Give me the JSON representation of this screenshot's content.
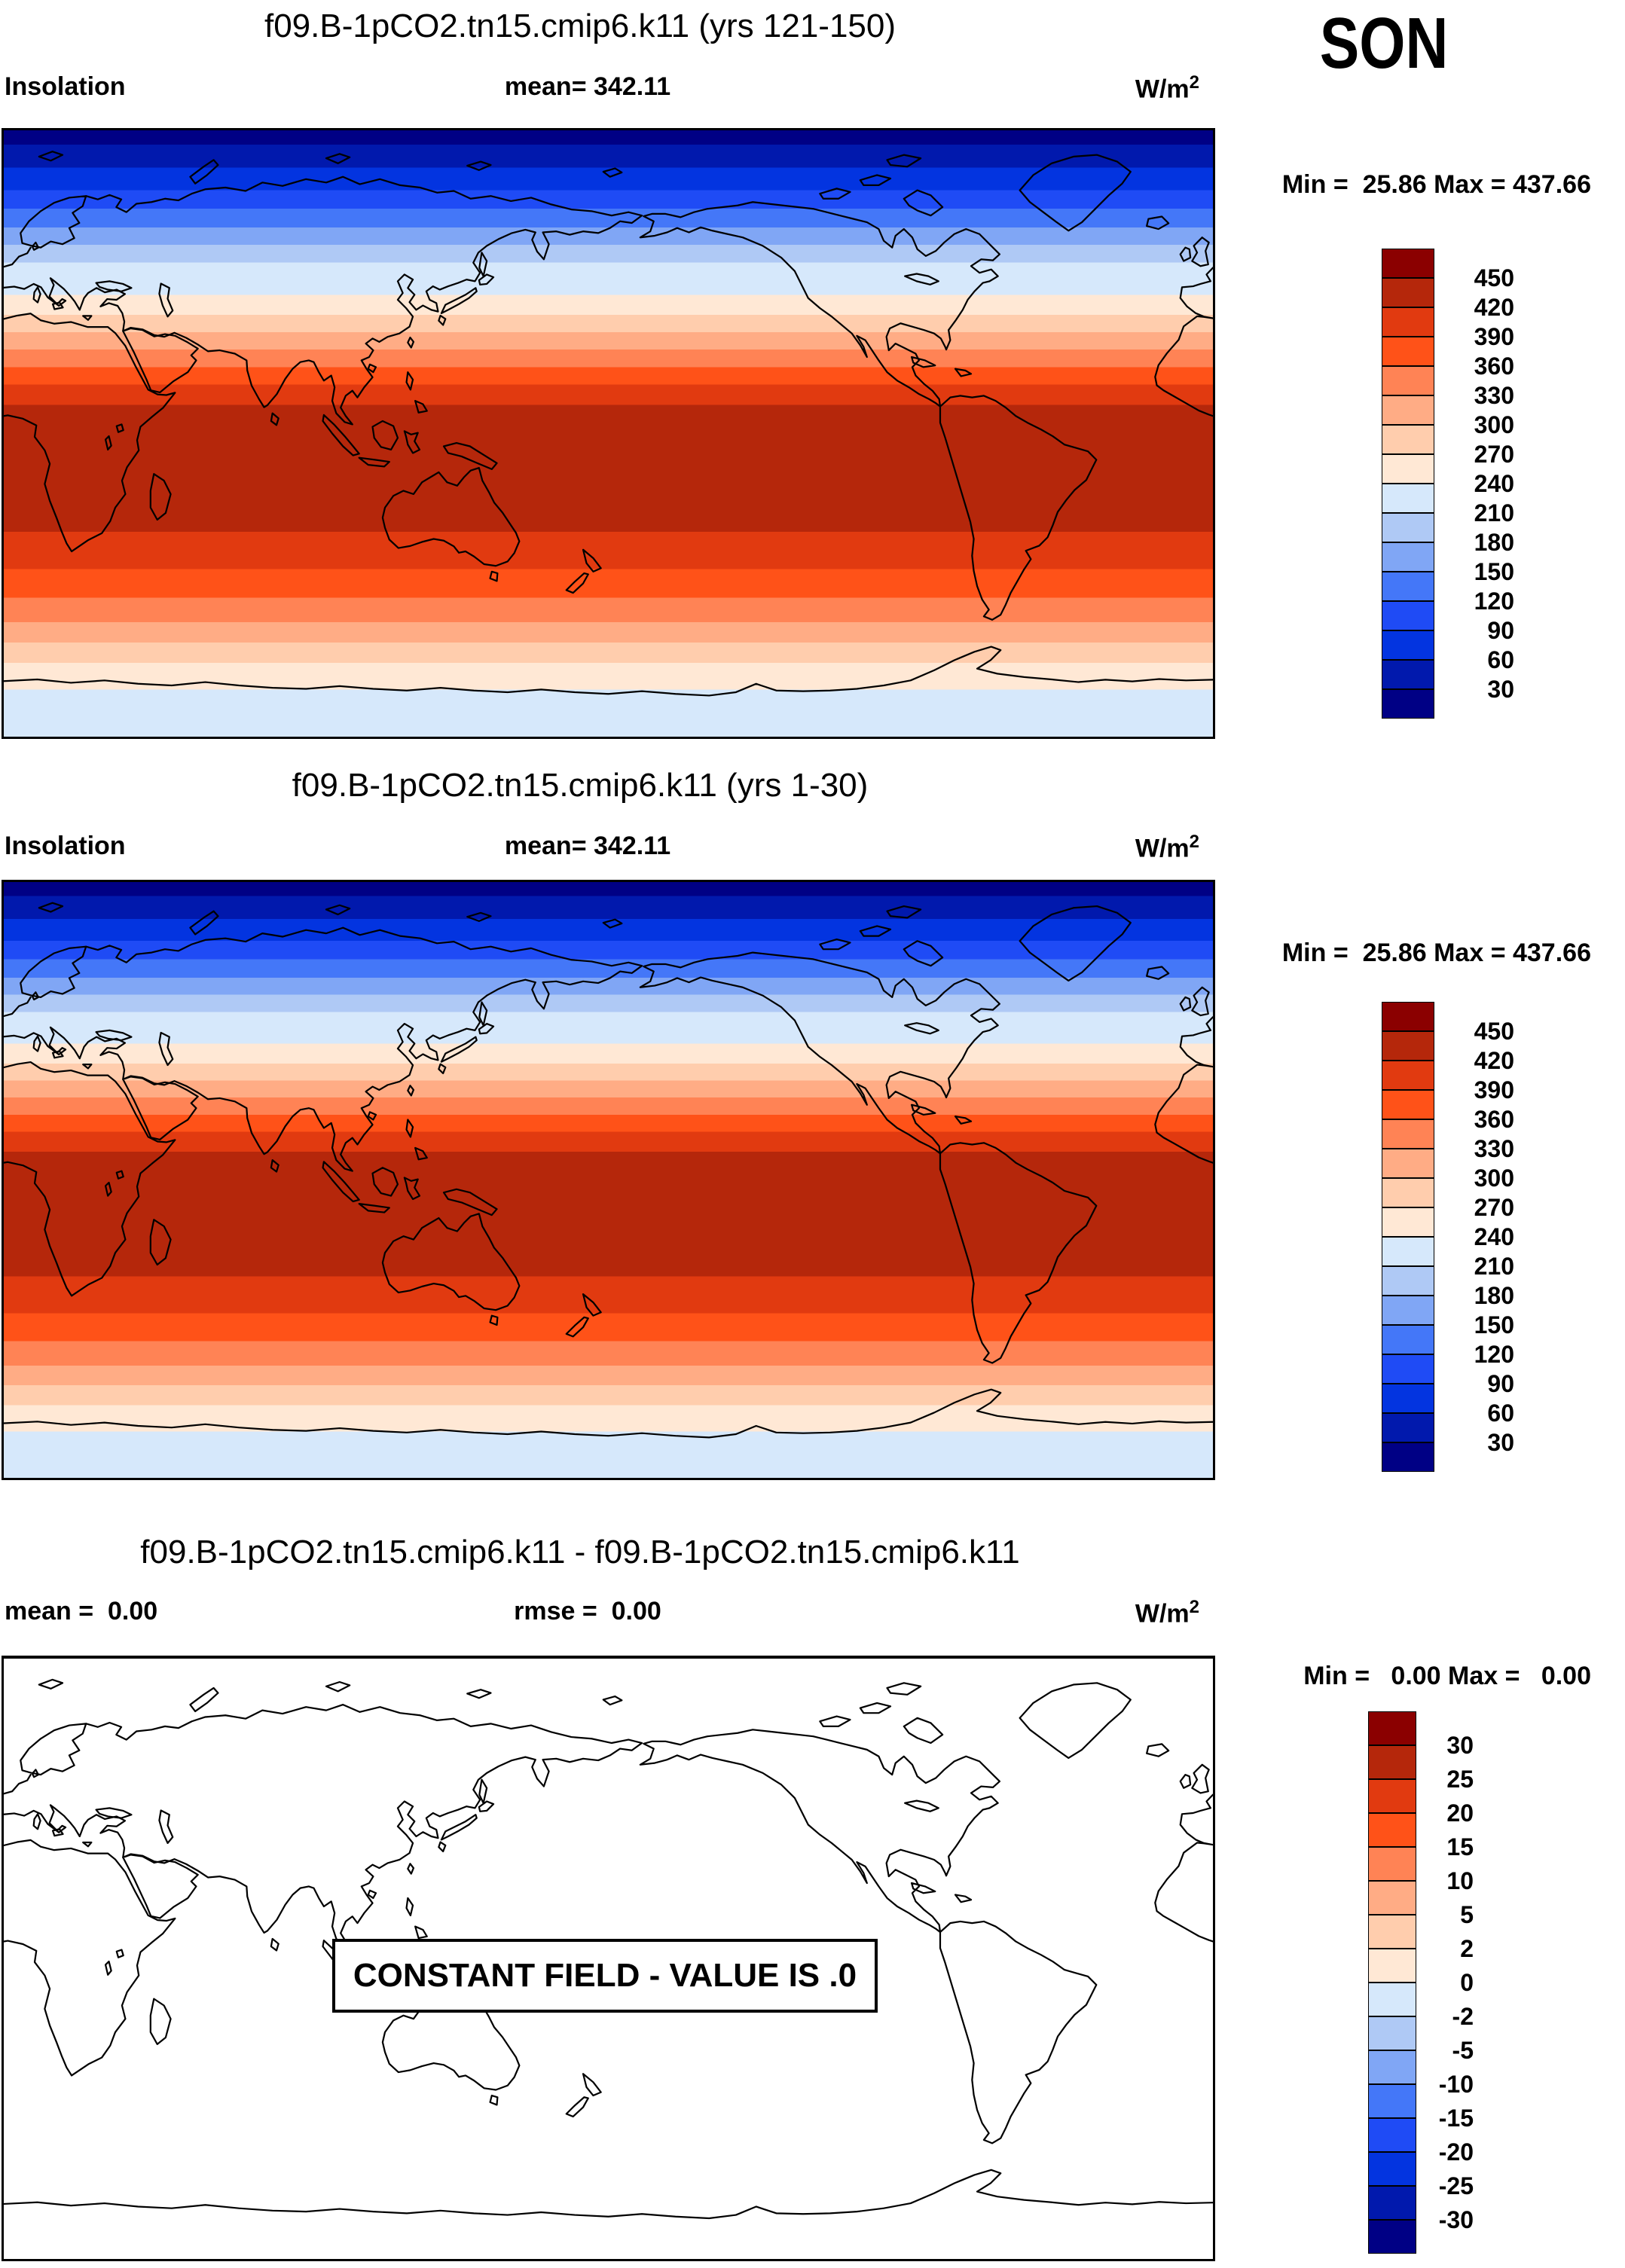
{
  "figure": {
    "season": "SON",
    "panels": [
      {
        "title": "f09.B-1pCO2.tn15.cmip6.k11 (yrs 121-150)",
        "left_label": "Insolation",
        "center_label": "mean= 342.11",
        "units_base": "W/m",
        "units_exp": "2",
        "minmax": "Min =  25.86 Max = 437.66",
        "field": "insolation"
      },
      {
        "title": "f09.B-1pCO2.tn15.cmip6.k11 (yrs 1-30)",
        "left_label": "Insolation",
        "center_label": "mean= 342.11",
        "units_base": "W/m",
        "units_exp": "2",
        "minmax": "Min =  25.86 Max = 437.66",
        "field": "insolation"
      },
      {
        "title": "f09.B-1pCO2.tn15.cmip6.k11 - f09.B-1pCO2.tn15.cmip6.k11",
        "left_label": "mean =  0.00",
        "center_label": "rmse =  0.00",
        "units_base": "W/m",
        "units_exp": "2",
        "minmax": "Min =   0.00 Max =   0.00",
        "field": "difference",
        "overlay_note": "CONSTANT FIELD - VALUE IS .0"
      }
    ]
  },
  "colorbar": {
    "colors_top_to_bottom": [
      "#8B0000",
      "#B5270B",
      "#E13A10",
      "#FF5218",
      "#FF8355",
      "#FFAC85",
      "#FFCDAD",
      "#FFE8D5",
      "#D6E8FB",
      "#AFC9F5",
      "#80A6F5",
      "#4477F8",
      "#1F4BF5",
      "#0334E0",
      "#0119AD",
      "#000085"
    ],
    "insolation_ticks": [
      "450",
      "420",
      "390",
      "360",
      "330",
      "300",
      "270",
      "240",
      "210",
      "180",
      "150",
      "120",
      "90",
      "60",
      "30"
    ],
    "difference_ticks": [
      "30",
      "25",
      "20",
      "15",
      "10",
      "5",
      "2",
      "0",
      "-2",
      "-5",
      "-10",
      "-15",
      "-20",
      "-25",
      "-30"
    ]
  },
  "map_bands": [
    {
      "until": 0.0234,
      "color": "#000085"
    },
    {
      "until": 0.0617,
      "color": "#0119AD"
    },
    {
      "until": 0.0986,
      "color": "#0334E0"
    },
    {
      "until": 0.1295,
      "color": "#1F4BF5"
    },
    {
      "until": 0.1603,
      "color": "#4477F8"
    },
    {
      "until": 0.1887,
      "color": "#80A6F5"
    },
    {
      "until": 0.2183,
      "color": "#AFC9F5"
    },
    {
      "until": 0.2713,
      "color": "#D6E8FB"
    },
    {
      "until": 0.3046,
      "color": "#FFE8D5"
    },
    {
      "until": 0.3329,
      "color": "#FFCDAD"
    },
    {
      "until": 0.3613,
      "color": "#FFAC85"
    },
    {
      "until": 0.3909,
      "color": "#FF8355"
    },
    {
      "until": 0.4193,
      "color": "#FF5218"
    },
    {
      "until": 0.4525,
      "color": "#E13A10"
    },
    {
      "until": 0.6621,
      "color": "#B5270B"
    },
    {
      "until": 0.7238,
      "color": "#E13A10"
    },
    {
      "until": 0.7707,
      "color": "#FF5218"
    },
    {
      "until": 0.8114,
      "color": "#FF8355"
    },
    {
      "until": 0.8447,
      "color": "#FFAC85"
    },
    {
      "until": 0.878,
      "color": "#FFCDAD"
    },
    {
      "until": 0.9223,
      "color": "#FFE8D5"
    },
    {
      "until": 1.0,
      "color": "#D6E8FB"
    }
  ],
  "chart_data": [
    {
      "type": "heatmap",
      "title": "f09.B-1pCO2.tn15.cmip6.k11 (yrs 121-150)",
      "field": "Insolation",
      "season": "SON",
      "units": "W/m2",
      "mean": 342.11,
      "min": 25.86,
      "max": 437.66,
      "projection": "cylindrical equidistant, lon 0-360E left-to-right, lat 90N top to 90S bottom",
      "contour_levels": [
        30,
        60,
        90,
        120,
        150,
        180,
        210,
        240,
        270,
        300,
        330,
        360,
        390,
        420,
        450
      ],
      "legend_position": "right colorbar, blue (low) to dark red (high)",
      "zonal_band_boundaries_lat_level": [
        [
          85.8,
          30
        ],
        [
          78.9,
          60
        ],
        [
          72.3,
          90
        ],
        [
          66.7,
          120
        ],
        [
          61.1,
          150
        ],
        [
          56.0,
          180
        ],
        [
          50.7,
          210
        ],
        [
          41.2,
          240
        ],
        [
          35.2,
          270
        ],
        [
          30.1,
          300
        ],
        [
          25.0,
          330
        ],
        [
          19.6,
          360
        ],
        [
          14.5,
          390
        ],
        [
          8.6,
          420
        ],
        [
          -29.2,
          420
        ],
        [
          -40.3,
          390
        ],
        [
          -48.7,
          360
        ],
        [
          -56.1,
          330
        ],
        [
          -62.0,
          300
        ],
        [
          -68.0,
          270
        ],
        [
          -76.0,
          240
        ]
      ],
      "note": "zonally uniform field: ~26 W/m2 at N pole rising to 420-450 band centered near 10S, decreasing to 210-240 at S pole; black coastlines overlaid"
    },
    {
      "type": "heatmap",
      "title": "f09.B-1pCO2.tn15.cmip6.k11 (yrs 1-30)",
      "field": "Insolation",
      "season": "SON",
      "units": "W/m2",
      "mean": 342.11,
      "min": 25.86,
      "max": 437.66,
      "projection": "cylindrical equidistant, lon 0-360E left-to-right, lat 90N top to 90S bottom",
      "contour_levels": [
        30,
        60,
        90,
        120,
        150,
        180,
        210,
        240,
        270,
        300,
        330,
        360,
        390,
        420,
        450
      ],
      "legend_position": "right colorbar, blue (low) to dark red (high)",
      "note": "identical zonally uniform field as top panel"
    },
    {
      "type": "heatmap",
      "title": "f09.B-1pCO2.tn15.cmip6.k11 - f09.B-1pCO2.tn15.cmip6.k11",
      "field": "Insolation difference",
      "units": "W/m2",
      "mean": 0.0,
      "rmse": 0.0,
      "min": 0.0,
      "max": 0.0,
      "contour_levels": [
        -30,
        -25,
        -20,
        -15,
        -10,
        -5,
        -2,
        0,
        2,
        5,
        10,
        15,
        20,
        25,
        30
      ],
      "values": "uniform 0 everywhere (blank white map, coastlines only)",
      "annotation": "CONSTANT FIELD - VALUE IS .0"
    }
  ]
}
